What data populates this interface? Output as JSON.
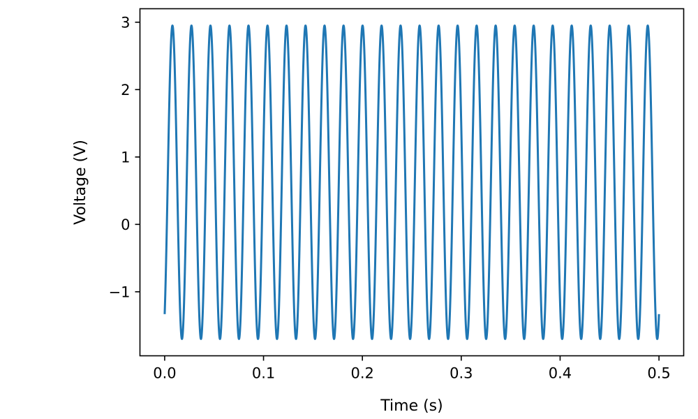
{
  "chart_data": {
    "type": "line",
    "title": "",
    "xlabel": "Time (s)",
    "ylabel": "Voltage (V)",
    "xlim": [
      -0.025,
      0.525
    ],
    "ylim": [
      -1.95,
      3.2
    ],
    "xticks": [
      0.0,
      0.1,
      0.2,
      0.3,
      0.4,
      0.5
    ],
    "xtick_labels": [
      "0.0",
      "0.1",
      "0.2",
      "0.3",
      "0.4",
      "0.5"
    ],
    "yticks": [
      -1,
      0,
      1,
      2,
      3
    ],
    "ytick_labels": [
      "−1",
      "0",
      "1",
      "2",
      "3"
    ],
    "grid": false,
    "series": [
      {
        "color": "#1f77b4",
        "function": "offset + amplitude * sin(2*pi*frequency*t + phase)",
        "offset": 0.625,
        "amplitude": 2.325,
        "frequency": 52,
        "phase": -1.0,
        "t_start": 0.0,
        "t_end": 0.5
      }
    ]
  }
}
